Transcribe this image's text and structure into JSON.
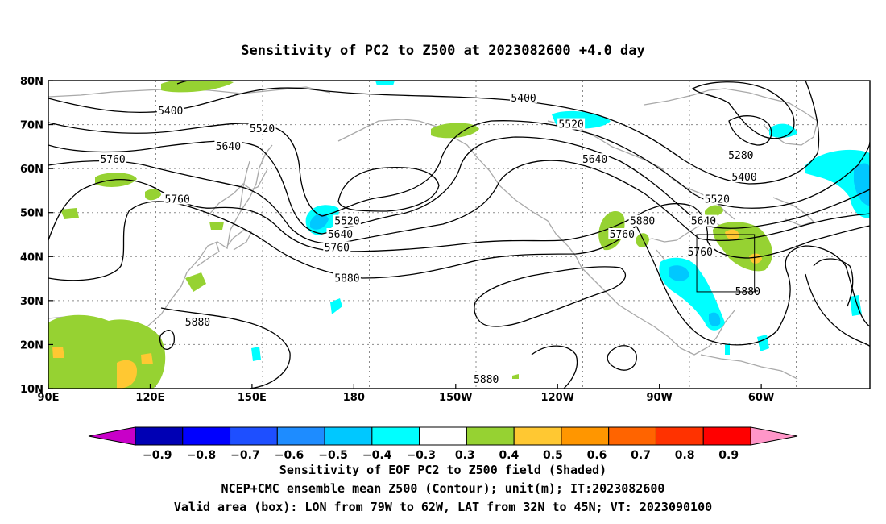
{
  "chart_data": {
    "type": "map",
    "title": "Sensitivity of PC2 to Z500 at 2023082600 +4.0 day",
    "lon_ticks": [
      "90E",
      "120E",
      "150E",
      "180",
      "150W",
      "120W",
      "90W",
      "60W"
    ],
    "lat_ticks": [
      "80N",
      "70N",
      "60N",
      "50N",
      "40N",
      "30N",
      "20N",
      "10N"
    ],
    "lon_range": [
      90,
      332
    ],
    "lat_range": [
      10,
      80
    ],
    "grid": true,
    "contour_labels": [
      {
        "text": "5400",
        "lon": 126,
        "lat": 73
      },
      {
        "text": "5400",
        "lon": 230,
        "lat": 76
      },
      {
        "text": "5520",
        "lon": 153,
        "lat": 69
      },
      {
        "text": "5520",
        "lon": 244,
        "lat": 70
      },
      {
        "text": "5640",
        "lon": 143,
        "lat": 65
      },
      {
        "text": "5640",
        "lon": 251,
        "lat": 62
      },
      {
        "text": "5760",
        "lon": 109,
        "lat": 62
      },
      {
        "text": "5760",
        "lon": 128,
        "lat": 53
      },
      {
        "text": "5520",
        "lon": 178,
        "lat": 48
      },
      {
        "text": "5640",
        "lon": 176,
        "lat": 45
      },
      {
        "text": "5760",
        "lon": 175,
        "lat": 42
      },
      {
        "text": "5880",
        "lon": 178,
        "lat": 35
      },
      {
        "text": "5760",
        "lon": 259,
        "lat": 45
      },
      {
        "text": "5880",
        "lon": 265,
        "lat": 48
      },
      {
        "text": "5640",
        "lon": 283,
        "lat": 48
      },
      {
        "text": "5760",
        "lon": 282,
        "lat": 41
      },
      {
        "text": "5520",
        "lon": 287,
        "lat": 53
      },
      {
        "text": "5400",
        "lon": 295,
        "lat": 58
      },
      {
        "text": "5280",
        "lon": 294,
        "lat": 63
      },
      {
        "text": "5880",
        "lon": 296,
        "lat": 32
      },
      {
        "text": "5880",
        "lon": 134,
        "lat": 25
      },
      {
        "text": "5880",
        "lon": 219,
        "lat": 12
      }
    ],
    "box": {
      "lon_min": -79,
      "lon_max": -62,
      "lat_min": 32,
      "lat_max": 45
    },
    "colorbar": {
      "labels": [
        "-0.9",
        "-0.8",
        "-0.7",
        "-0.6",
        "-0.5",
        "-0.4",
        "-0.3",
        "0.3",
        "0.4",
        "0.5",
        "0.6",
        "0.7",
        "0.8",
        "0.9"
      ],
      "colors": [
        "#0000b4",
        "#0000ff",
        "#1e4fff",
        "#1e8cff",
        "#00c8ff",
        "#00ffff",
        "#ffffff",
        "#96d232",
        "#ffc832",
        "#ff9600",
        "#ff6400",
        "#ff3200",
        "#ff0000"
      ],
      "low_arrow_color": "#c800c8",
      "high_arrow_color": "#ff96c8"
    },
    "footer": [
      "Sensitivity of EOF PC2 to Z500 field (Shaded)",
      "NCEP+CMC ensemble mean Z500 (Contour); unit(m); IT:2023082600",
      "Valid area (box): LON from 79W to 62W, LAT from 32N to 45N; VT: 2023090100"
    ]
  }
}
